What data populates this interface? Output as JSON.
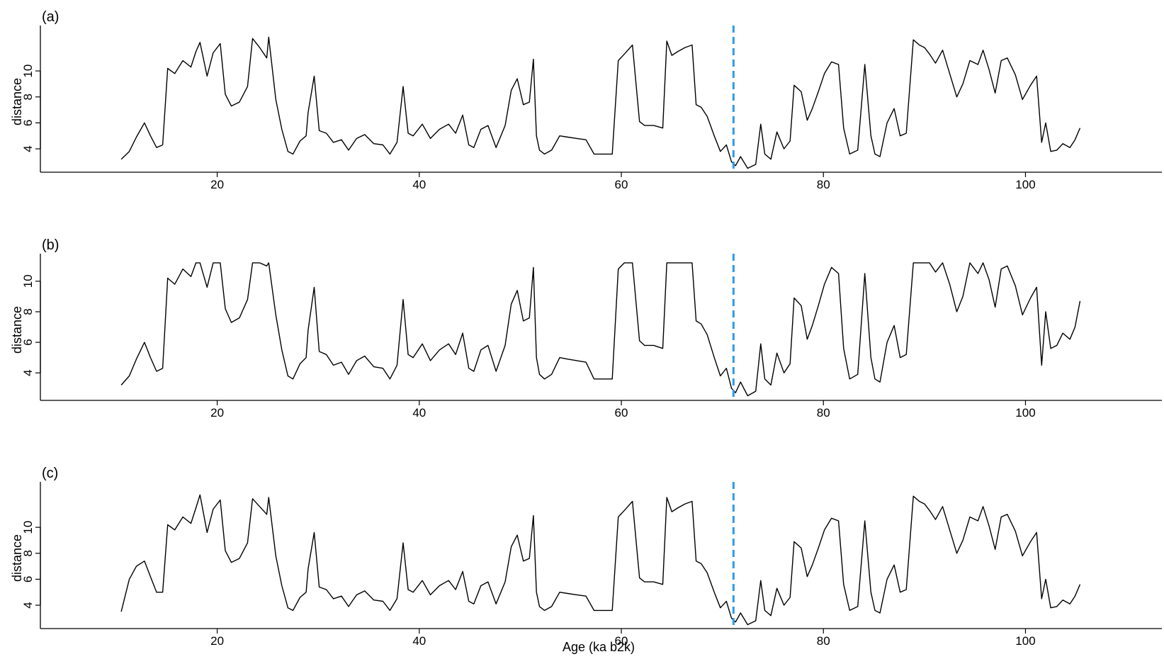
{
  "figure": {
    "xlabel": "Age (ka b2k)",
    "line_color": "#000000",
    "marker_color": "#2e9be6"
  },
  "chart_data": [
    {
      "type": "line",
      "panel_label": "(a)",
      "xlabel": "",
      "ylabel": "distance",
      "xlim": [
        2.5,
        113.5
      ],
      "ylim": [
        2.2,
        13.5
      ],
      "xticks": [
        20,
        40,
        60,
        80,
        100
      ],
      "yticks": [
        4,
        6,
        8,
        10
      ],
      "vertical_marker_x": 71.1,
      "x": [
        10.5,
        11.3,
        12.0,
        12.8,
        13.4,
        14.0,
        14.6,
        15.1,
        15.8,
        16.6,
        17.4,
        17.9,
        18.3,
        19.0,
        19.6,
        20.3,
        20.8,
        21.4,
        22.2,
        23.0,
        23.5,
        24.2,
        24.9,
        25.1,
        25.8,
        26.4,
        27.0,
        27.5,
        28.2,
        28.8,
        29.0,
        29.6,
        30.1,
        30.8,
        31.5,
        32.3,
        33.0,
        33.8,
        34.6,
        35.5,
        36.4,
        37.1,
        37.8,
        38.4,
        38.9,
        39.4,
        40.3,
        41.1,
        42.0,
        42.9,
        43.6,
        44.3,
        44.9,
        45.4,
        46.1,
        46.8,
        47.6,
        48.5,
        49.1,
        49.7,
        50.3,
        50.9,
        51.3,
        51.6,
        51.9,
        52.4,
        53.1,
        53.9,
        54.7,
        55.6,
        56.5,
        57.3,
        58.2,
        59.1,
        59.7,
        60.3,
        61.1,
        61.8,
        62.3,
        62.6,
        63.2,
        64.1,
        64.5,
        65.0,
        65.6,
        66.3,
        67.0,
        67.4,
        67.9,
        68.5,
        69.2,
        69.8,
        70.4,
        70.9,
        71.3,
        71.8,
        72.5,
        73.3,
        73.8,
        74.2,
        74.8,
        75.4,
        76.1,
        76.7,
        77.1,
        77.8,
        78.4,
        78.9,
        79.5,
        80.1,
        80.8,
        81.5,
        82.0,
        82.6,
        83.4,
        84.1,
        84.7,
        85.1,
        85.6,
        86.3,
        87.0,
        87.6,
        88.2,
        88.9,
        89.5,
        90.0,
        90.5,
        91.1,
        91.8,
        92.5,
        93.2,
        93.8,
        94.5,
        95.3,
        95.8,
        96.4,
        97.0,
        97.6,
        98.2,
        99.0,
        99.7,
        100.5,
        101.1,
        101.6,
        102.0,
        102.5,
        103.1,
        103.7,
        104.4,
        104.9,
        105.4
      ],
      "y": [
        3.2,
        3.8,
        4.9,
        6.0,
        5.0,
        4.1,
        4.3,
        10.2,
        9.8,
        10.8,
        10.3,
        11.5,
        12.2,
        9.6,
        11.4,
        12.1,
        8.2,
        7.3,
        7.6,
        8.8,
        12.5,
        11.8,
        11.0,
        12.6,
        7.8,
        5.5,
        3.8,
        3.6,
        4.6,
        5.0,
        6.8,
        9.6,
        5.4,
        5.2,
        4.5,
        4.7,
        3.9,
        4.8,
        5.1,
        4.4,
        4.3,
        3.6,
        4.5,
        8.8,
        5.2,
        5.0,
        5.9,
        4.8,
        5.5,
        5.9,
        5.2,
        6.6,
        4.3,
        4.1,
        5.5,
        5.8,
        4.1,
        5.8,
        8.5,
        9.4,
        7.4,
        7.6,
        10.9,
        5.0,
        3.9,
        3.6,
        3.9,
        5.0,
        4.9,
        4.8,
        4.7,
        3.6,
        3.6,
        3.6,
        10.8,
        11.3,
        12.0,
        6.1,
        5.8,
        5.8,
        5.8,
        5.6,
        12.3,
        11.2,
        11.5,
        11.8,
        12.0,
        7.4,
        7.2,
        6.5,
        5.0,
        3.8,
        4.3,
        3.0,
        2.7,
        3.4,
        2.5,
        2.8,
        5.9,
        3.6,
        3.2,
        5.3,
        4.0,
        4.6,
        8.9,
        8.4,
        6.2,
        7.1,
        8.4,
        9.8,
        10.7,
        10.5,
        5.6,
        3.6,
        3.9,
        10.5,
        5.0,
        3.6,
        3.4,
        6.0,
        7.1,
        5.0,
        5.2,
        12.4,
        12.0,
        11.8,
        11.3,
        10.6,
        11.6,
        9.8,
        8.0,
        9.0,
        10.8,
        10.5,
        11.6,
        10.1,
        8.3,
        10.8,
        11.0,
        9.7,
        7.8,
        8.9,
        9.6,
        4.5,
        6.0,
        3.8,
        3.9,
        4.4,
        4.1,
        4.7,
        5.6
      ]
    },
    {
      "type": "line",
      "panel_label": "(b)",
      "xlabel": "",
      "ylabel": "distance",
      "xlim": [
        2.5,
        113.5
      ],
      "ylim": [
        2.2,
        11.8
      ],
      "xticks": [
        20,
        40,
        60,
        80,
        100
      ],
      "yticks": [
        4,
        6,
        8,
        10
      ],
      "vertical_marker_x": 71.1,
      "x": [
        10.5,
        11.3,
        12.0,
        12.8,
        13.4,
        14.0,
        14.6,
        15.1,
        15.8,
        16.6,
        17.4,
        17.9,
        18.3,
        19.0,
        19.6,
        20.3,
        20.8,
        21.4,
        22.2,
        23.0,
        23.5,
        24.2,
        24.9,
        25.1,
        25.8,
        26.4,
        27.0,
        27.5,
        28.2,
        28.8,
        29.0,
        29.6,
        30.1,
        30.8,
        31.5,
        32.3,
        33.0,
        33.8,
        34.6,
        35.5,
        36.4,
        37.1,
        37.8,
        38.4,
        38.9,
        39.4,
        40.3,
        41.1,
        42.0,
        42.9,
        43.6,
        44.3,
        44.9,
        45.4,
        46.1,
        46.8,
        47.6,
        48.5,
        49.1,
        49.7,
        50.3,
        50.9,
        51.3,
        51.6,
        51.9,
        52.4,
        53.1,
        53.9,
        54.7,
        55.6,
        56.5,
        57.3,
        58.2,
        59.1,
        59.7,
        60.3,
        61.1,
        61.8,
        62.3,
        62.6,
        63.2,
        64.1,
        64.5,
        65.0,
        65.6,
        66.3,
        67.0,
        67.4,
        67.9,
        68.5,
        69.2,
        69.8,
        70.4,
        70.9,
        71.3,
        71.8,
        72.5,
        73.3,
        73.8,
        74.2,
        74.8,
        75.4,
        76.1,
        76.7,
        77.1,
        77.8,
        78.4,
        78.9,
        79.5,
        80.1,
        80.8,
        81.5,
        82.0,
        82.6,
        83.4,
        84.1,
        84.7,
        85.1,
        85.6,
        86.3,
        87.0,
        87.6,
        88.2,
        88.9,
        89.5,
        90.0,
        90.5,
        91.1,
        91.8,
        92.5,
        93.2,
        93.8,
        94.5,
        95.3,
        95.8,
        96.4,
        97.0,
        97.6,
        98.2,
        99.0,
        99.7,
        100.5,
        101.1,
        101.6,
        102.0,
        102.5,
        103.1,
        103.7,
        104.4,
        104.9,
        105.4
      ],
      "y": [
        3.2,
        3.8,
        4.9,
        6.0,
        5.0,
        4.1,
        4.3,
        10.2,
        9.8,
        10.8,
        10.3,
        11.2,
        11.2,
        9.6,
        11.2,
        11.2,
        8.2,
        7.3,
        7.6,
        8.8,
        11.2,
        11.2,
        11.0,
        11.2,
        7.8,
        5.5,
        3.8,
        3.6,
        4.6,
        5.0,
        6.8,
        9.6,
        5.4,
        5.2,
        4.5,
        4.7,
        3.9,
        4.8,
        5.1,
        4.4,
        4.3,
        3.6,
        4.5,
        8.8,
        5.2,
        5.0,
        5.9,
        4.8,
        5.5,
        5.9,
        5.2,
        6.6,
        4.3,
        4.1,
        5.5,
        5.8,
        4.1,
        5.8,
        8.5,
        9.4,
        7.4,
        7.6,
        10.9,
        5.0,
        3.9,
        3.6,
        3.9,
        5.0,
        4.9,
        4.8,
        4.7,
        3.6,
        3.6,
        3.6,
        10.8,
        11.2,
        11.2,
        6.1,
        5.8,
        5.8,
        5.8,
        5.6,
        11.2,
        11.2,
        11.2,
        11.2,
        11.2,
        7.4,
        7.2,
        6.5,
        5.0,
        3.8,
        4.3,
        3.0,
        2.7,
        3.4,
        2.5,
        2.8,
        5.9,
        3.6,
        3.2,
        5.3,
        4.0,
        4.6,
        8.9,
        8.4,
        6.2,
        7.1,
        8.4,
        9.8,
        10.9,
        10.5,
        5.6,
        3.6,
        3.9,
        10.5,
        5.0,
        3.6,
        3.4,
        6.0,
        7.1,
        5.0,
        5.2,
        11.2,
        11.2,
        11.2,
        11.2,
        10.6,
        11.2,
        9.8,
        8.0,
        9.0,
        11.2,
        10.5,
        11.2,
        10.1,
        8.3,
        10.8,
        11.0,
        9.7,
        7.8,
        8.9,
        9.6,
        4.5,
        8.0,
        5.6,
        5.8,
        6.6,
        6.2,
        7.0,
        8.7
      ]
    },
    {
      "type": "line",
      "panel_label": "(c)",
      "xlabel": "Age (ka b2k)",
      "ylabel": "distance",
      "xlim": [
        2.5,
        113.5
      ],
      "ylim": [
        2.2,
        13.5
      ],
      "xticks": [
        20,
        40,
        60,
        80,
        100
      ],
      "yticks": [
        4,
        6,
        8,
        10
      ],
      "vertical_marker_x": 71.1,
      "x": [
        10.5,
        11.3,
        12.0,
        12.8,
        13.4,
        14.0,
        14.6,
        15.1,
        15.8,
        16.6,
        17.4,
        17.9,
        18.3,
        19.0,
        19.6,
        20.3,
        20.8,
        21.4,
        22.2,
        23.0,
        23.5,
        24.2,
        24.9,
        25.1,
        25.8,
        26.4,
        27.0,
        27.5,
        28.2,
        28.8,
        29.0,
        29.6,
        30.1,
        30.8,
        31.5,
        32.3,
        33.0,
        33.8,
        34.6,
        35.5,
        36.4,
        37.1,
        37.8,
        38.4,
        38.9,
        39.4,
        40.3,
        41.1,
        42.0,
        42.9,
        43.6,
        44.3,
        44.9,
        45.4,
        46.1,
        46.8,
        47.6,
        48.5,
        49.1,
        49.7,
        50.3,
        50.9,
        51.3,
        51.6,
        51.9,
        52.4,
        53.1,
        53.9,
        54.7,
        55.6,
        56.5,
        57.3,
        58.2,
        59.1,
        59.7,
        60.3,
        61.1,
        61.8,
        62.3,
        62.6,
        63.2,
        64.1,
        64.5,
        65.0,
        65.6,
        66.3,
        67.0,
        67.4,
        67.9,
        68.5,
        69.2,
        69.8,
        70.4,
        70.9,
        71.3,
        71.8,
        72.5,
        73.3,
        73.8,
        74.2,
        74.8,
        75.4,
        76.1,
        76.7,
        77.1,
        77.8,
        78.4,
        78.9,
        79.5,
        80.1,
        80.8,
        81.5,
        82.0,
        82.6,
        83.4,
        84.1,
        84.7,
        85.1,
        85.6,
        86.3,
        87.0,
        87.6,
        88.2,
        88.9,
        89.5,
        90.0,
        90.5,
        91.1,
        91.8,
        92.5,
        93.2,
        93.8,
        94.5,
        95.3,
        95.8,
        96.4,
        97.0,
        97.6,
        98.2,
        99.0,
        99.7,
        100.5,
        101.1,
        101.6,
        102.0,
        102.5,
        103.1,
        103.7,
        104.4,
        104.9,
        105.4
      ],
      "y": [
        3.5,
        6.0,
        7.0,
        7.4,
        6.2,
        5.0,
        5.0,
        10.2,
        9.8,
        10.8,
        10.3,
        11.5,
        12.5,
        9.6,
        11.4,
        12.1,
        8.2,
        7.3,
        7.6,
        8.8,
        12.2,
        11.6,
        11.0,
        12.3,
        7.8,
        5.5,
        3.8,
        3.6,
        4.6,
        5.0,
        6.8,
        9.6,
        5.4,
        5.2,
        4.5,
        4.7,
        3.9,
        4.8,
        5.1,
        4.4,
        4.3,
        3.6,
        4.5,
        8.8,
        5.2,
        5.0,
        5.9,
        4.8,
        5.5,
        5.9,
        5.2,
        6.6,
        4.3,
        4.1,
        5.5,
        5.8,
        4.1,
        5.8,
        8.5,
        9.4,
        7.4,
        7.6,
        10.9,
        5.0,
        3.9,
        3.6,
        3.9,
        5.0,
        4.9,
        4.8,
        4.7,
        3.6,
        3.6,
        3.6,
        10.8,
        11.3,
        12.0,
        6.1,
        5.8,
        5.8,
        5.8,
        5.6,
        12.3,
        11.2,
        11.5,
        11.8,
        12.0,
        7.4,
        7.2,
        6.5,
        5.0,
        3.8,
        4.3,
        3.0,
        2.7,
        3.4,
        2.5,
        2.8,
        5.9,
        3.6,
        3.2,
        5.3,
        4.0,
        4.6,
        8.9,
        8.4,
        6.2,
        7.1,
        8.4,
        9.8,
        10.7,
        10.5,
        5.6,
        3.6,
        3.9,
        10.5,
        5.0,
        3.6,
        3.4,
        6.0,
        7.1,
        5.0,
        5.2,
        12.4,
        12.0,
        11.8,
        11.3,
        10.6,
        11.6,
        9.8,
        8.0,
        9.0,
        10.8,
        10.5,
        11.6,
        10.1,
        8.3,
        10.8,
        11.0,
        9.7,
        7.8,
        8.9,
        9.6,
        4.5,
        6.0,
        3.8,
        3.9,
        4.4,
        4.1,
        4.7,
        5.6
      ]
    }
  ]
}
